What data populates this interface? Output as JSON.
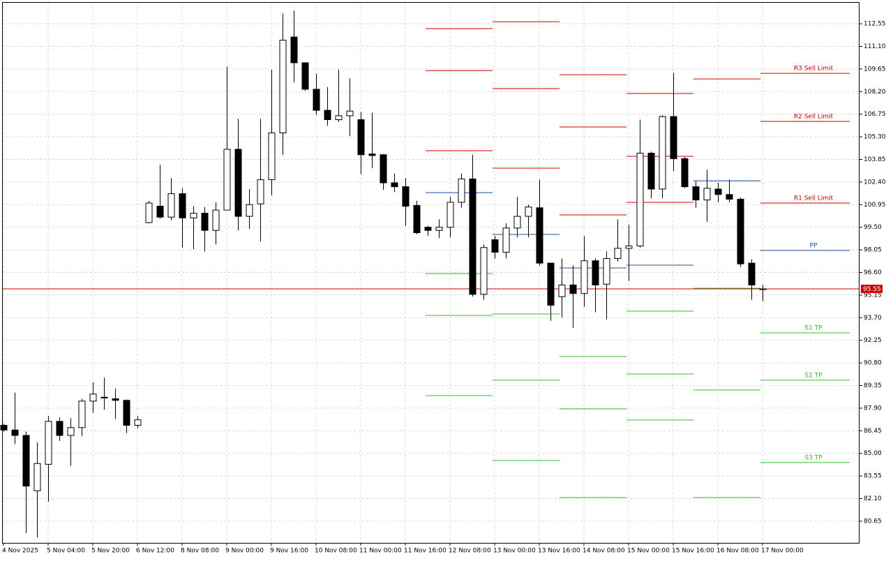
{
  "chart_data": {
    "type": "candlestick",
    "categories": [
      "4 Nov 2025",
      null,
      null,
      null,
      "5 Nov 04:00",
      null,
      null,
      null,
      "5 Nov 20:00",
      null,
      null,
      null,
      "6 Nov 12:00",
      null,
      null,
      null,
      "8 Nov 08:00",
      null,
      null,
      null,
      "9 Nov 00:00",
      null,
      null,
      null,
      "9 Nov 16:00",
      null,
      null,
      null,
      "10 Nov 08:00",
      null,
      null,
      null,
      "11 Nov 00:00",
      null,
      null,
      null,
      "11 Nov 16:00",
      null,
      null,
      null,
      "12 Nov 08:00",
      null,
      null,
      null,
      "13 Nov 00:00",
      null,
      null,
      null,
      "13 Nov 16:00",
      null,
      null,
      null,
      "14 Nov 08:00",
      null,
      null,
      null,
      "15 Nov 00:00",
      null,
      null,
      null,
      "15 Nov 16:00",
      null,
      null,
      null,
      "16 Nov 08:00",
      null,
      null,
      null,
      "17 Nov 00:00"
    ],
    "open": [
      86.8,
      86.5,
      86.15,
      82.6,
      84.3,
      87.05,
      86.15,
      86.65,
      88.35,
      88.6,
      88.5,
      88.4,
      86.8,
      99.8,
      100.85,
      100.15,
      101.65,
      100.1,
      100.4,
      99.3,
      100.6,
      104.5,
      100.2,
      101.0,
      102.55,
      105.55,
      111.7,
      110.05,
      108.35,
      107.0,
      106.4,
      106.65,
      106.4,
      104.2,
      104.15,
      102.35,
      102.1,
      100.9,
      99.5,
      99.3,
      99.5,
      101.1,
      102.6,
      95.2,
      98.7,
      97.9,
      99.45,
      100.2,
      100.75,
      97.2,
      95.05,
      95.8,
      95.25,
      97.35,
      95.85,
      97.5,
      98.15,
      98.3,
      104.25,
      101.95,
      106.6,
      103.9,
      102.1,
      101.25,
      101.95,
      101.6,
      101.3,
      97.2,
      95.5
    ],
    "high": [
      86.9,
      88.9,
      86.4,
      85.7,
      87.4,
      87.3,
      87.25,
      88.5,
      89.55,
      89.85,
      89.15,
      88.45,
      87.4,
      101.2,
      103.5,
      102.65,
      102.0,
      100.85,
      100.8,
      101.1,
      109.8,
      106.45,
      101.95,
      106.45,
      109.6,
      113.2,
      113.4,
      110.05,
      109.35,
      108.5,
      109.6,
      109.05,
      106.9,
      106.85,
      104.2,
      102.95,
      102.65,
      101.2,
      99.6,
      100.0,
      101.45,
      102.95,
      104.15,
      98.4,
      98.95,
      99.75,
      101.45,
      100.95,
      102.55,
      97.2,
      97.5,
      97.05,
      98.95,
      97.5,
      97.95,
      100.0,
      99.65,
      106.4,
      104.35,
      106.7,
      109.4,
      104.0,
      102.45,
      103.2,
      102.35,
      102.55,
      101.4,
      97.45,
      95.8
    ],
    "low": [
      86.4,
      85.6,
      79.9,
      79.6,
      81.9,
      85.8,
      84.2,
      86.1,
      87.6,
      87.8,
      87.2,
      86.3,
      86.6,
      99.75,
      100.05,
      99.95,
      98.2,
      98.1,
      97.95,
      98.4,
      100.6,
      99.3,
      99.4,
      98.6,
      101.55,
      104.15,
      108.8,
      108.25,
      106.7,
      106.0,
      106.25,
      105.35,
      102.9,
      103.3,
      101.9,
      101.75,
      99.6,
      99.05,
      98.95,
      98.8,
      98.85,
      100.75,
      95.05,
      94.85,
      97.5,
      97.5,
      98.85,
      98.85,
      97.05,
      93.5,
      93.7,
      93.05,
      94.4,
      94.05,
      93.6,
      97.3,
      96.05,
      98.2,
      101.35,
      101.35,
      103.1,
      102.0,
      100.75,
      99.85,
      101.1,
      101.1,
      96.95,
      94.85,
      94.75
    ],
    "close": [
      86.5,
      86.15,
      82.9,
      84.35,
      87.05,
      86.15,
      86.65,
      88.35,
      88.8,
      88.55,
      88.4,
      86.8,
      87.15,
      101.05,
      100.15,
      101.65,
      100.1,
      100.4,
      99.3,
      100.6,
      104.5,
      100.2,
      100.95,
      102.55,
      105.55,
      111.5,
      110.05,
      108.35,
      107.0,
      106.4,
      106.65,
      106.95,
      104.15,
      104.1,
      102.35,
      102.1,
      100.85,
      99.15,
      99.3,
      99.5,
      101.1,
      102.6,
      95.2,
      98.2,
      97.9,
      99.45,
      100.2,
      100.8,
      97.2,
      94.5,
      95.8,
      95.25,
      97.35,
      95.8,
      97.5,
      98.15,
      98.3,
      104.25,
      101.95,
      106.6,
      103.9,
      102.1,
      101.25,
      102.0,
      101.6,
      101.3,
      97.15,
      95.8,
      95.55
    ],
    "up_color": "#ffffff",
    "down_color": "#000000",
    "levels": [
      {
        "name": "R3 Sell Limit",
        "color": "#cc0000",
        "values": [
          112.24,
          112.68,
          109.28,
          108.08,
          109.01,
          109.37
        ]
      },
      {
        "name": "R2 Sell Limit",
        "color": "#cc0000",
        "values": [
          109.55,
          108.39,
          105.93,
          104.05,
          null,
          106.29
        ]
      },
      {
        "name": "R1 Sell Limit",
        "color": "#cc0000",
        "values": [
          104.41,
          103.29,
          100.29,
          101.1,
          null,
          101.05
        ]
      },
      {
        "name": "PP",
        "color": "#1f4e9c",
        "values": [
          101.72,
          99.04,
          96.89,
          97.07,
          102.48,
          98.01
        ]
      },
      {
        "name": "S1 TP",
        "color": "#33bb33",
        "values": [
          96.53,
          93.94,
          91.21,
          94.12,
          95.59,
          92.73
        ]
      },
      {
        "name": "S2 TP",
        "color": "#33bb33",
        "values": [
          93.85,
          89.69,
          87.85,
          90.09,
          89.06,
          89.69
        ]
      },
      {
        "name": "S3 TP",
        "color": "#33bb33",
        "values": [
          88.7,
          84.54,
          82.17,
          87.14,
          82.17,
          84.41
        ]
      }
    ],
    "current_price": 95.55,
    "current_price_color": "#cc0000",
    "ylim": [
      79.26,
      113.94
    ],
    "yticks": [
      {
        "value": 80.65,
        "label": "80.65"
      },
      {
        "value": 82.1,
        "label": "82.10"
      },
      {
        "value": 83.55,
        "label": "83.55"
      },
      {
        "value": 85.0,
        "label": "85.00"
      },
      {
        "value": 86.45,
        "label": "86.45"
      },
      {
        "value": 87.9,
        "label": "87.90"
      },
      {
        "value": 89.35,
        "label": "89.35"
      },
      {
        "value": 90.8,
        "label": "90.80"
      },
      {
        "value": 92.25,
        "label": "92.25"
      },
      {
        "value": 93.7,
        "label": "93.70"
      },
      {
        "value": 95.15,
        "label": "95.15"
      },
      {
        "value": 96.6,
        "label": "96.60"
      },
      {
        "value": 98.05,
        "label": "98.05"
      },
      {
        "value": 99.5,
        "label": "99.50"
      },
      {
        "value": 100.95,
        "label": "100.95"
      },
      {
        "value": 102.4,
        "label": "102.40"
      },
      {
        "value": 103.85,
        "label": "103.85"
      },
      {
        "value": 105.3,
        "label": "105.30"
      },
      {
        "value": 106.75,
        "label": "106.75"
      },
      {
        "value": 108.2,
        "label": "108.20"
      },
      {
        "value": 109.65,
        "label": "109.65"
      },
      {
        "value": 111.1,
        "label": "111.10"
      },
      {
        "value": 112.55,
        "label": "112.55"
      }
    ],
    "grid": true
  }
}
